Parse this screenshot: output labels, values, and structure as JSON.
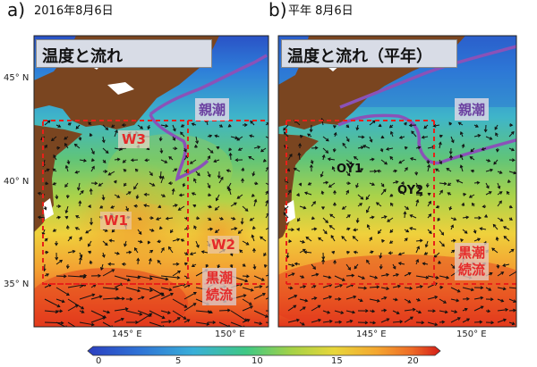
{
  "panels": [
    {
      "letter": "a)",
      "date": "2016年8月6日",
      "title": "温度と流れ",
      "tags": [
        {
          "text": "親潮",
          "color": "#6a3fa0"
        },
        {
          "text": "W3",
          "color": "#e52a2a"
        },
        {
          "text": "W1",
          "color": "#e52a2a"
        },
        {
          "text": "W2",
          "color": "#e52a2a"
        },
        {
          "text": "黒潮\n続流",
          "color": "#e52a2a"
        }
      ]
    },
    {
      "letter": "b)",
      "date": "平年  8月6日",
      "title": "温度と流れ（平年）",
      "tags": [
        {
          "text": "親潮",
          "color": "#6a3fa0"
        },
        {
          "text": "OY1",
          "color": "#111111"
        },
        {
          "text": "OY2",
          "color": "#111111"
        },
        {
          "text": "黒潮\n続流",
          "color": "#e52a2a"
        }
      ]
    }
  ],
  "lat_labels": [
    "45° N",
    "40° N",
    "35° N"
  ],
  "lon_labels_a": [
    "145° E",
    "150° E"
  ],
  "lon_labels_b": [
    "145° E",
    "150° E"
  ],
  "colorbar": {
    "ticks": [
      "0",
      "5",
      "10",
      "15",
      "20"
    ],
    "colors": [
      "#2b46c8",
      "#2e7ad8",
      "#3ab0d8",
      "#3ec88e",
      "#8ed04a",
      "#e4d838",
      "#f4b030",
      "#f07a28",
      "#e03a1e",
      "#c81818"
    ]
  },
  "colors": {
    "land": "#7a4520",
    "box": "#e8201a",
    "oyashio_line": "#8a52b8"
  }
}
